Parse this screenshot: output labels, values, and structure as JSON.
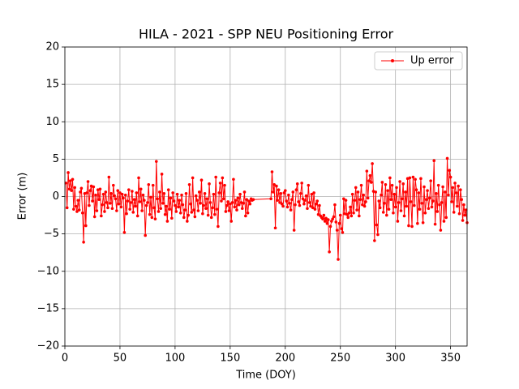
{
  "chart_data": {
    "type": "line",
    "title": "HILA - 2021 - SPP NEU Positioning Error",
    "xlabel": "Time (DOY)",
    "ylabel": "Error (m)",
    "xlim": [
      0,
      365
    ],
    "ylim": [
      -20,
      20
    ],
    "xticks": [
      0,
      50,
      100,
      150,
      200,
      250,
      300,
      350
    ],
    "yticks": [
      {
        "value": -20,
        "label": "−20"
      },
      {
        "value": -15,
        "label": "−15"
      },
      {
        "value": -10,
        "label": "−10"
      },
      {
        "value": -5,
        "label": "−5"
      },
      0,
      5,
      10,
      15,
      20
    ],
    "grid": true,
    "legend": "upper right",
    "x": [
      1,
      2,
      3,
      4,
      5,
      6,
      7,
      8,
      9,
      10,
      11,
      12,
      13,
      14,
      15,
      16,
      17,
      18,
      19,
      20,
      21,
      22,
      23,
      24,
      25,
      26,
      27,
      28,
      29,
      30,
      31,
      32,
      33,
      34,
      35,
      36,
      37,
      38,
      39,
      40,
      41,
      42,
      43,
      44,
      45,
      46,
      47,
      48,
      49,
      50,
      51,
      52,
      53,
      54,
      55,
      56,
      57,
      58,
      59,
      60,
      61,
      62,
      63,
      64,
      65,
      66,
      67,
      68,
      69,
      70,
      71,
      72,
      73,
      74,
      75,
      76,
      77,
      78,
      79,
      80,
      81,
      82,
      83,
      84,
      85,
      86,
      87,
      88,
      89,
      90,
      91,
      92,
      93,
      94,
      95,
      96,
      97,
      98,
      99,
      100,
      101,
      102,
      103,
      104,
      105,
      106,
      107,
      108,
      109,
      110,
      111,
      112,
      113,
      114,
      115,
      116,
      117,
      118,
      119,
      120,
      121,
      122,
      123,
      124,
      125,
      126,
      127,
      128,
      129,
      130,
      131,
      132,
      133,
      134,
      135,
      136,
      137,
      138,
      139,
      140,
      141,
      142,
      143,
      144,
      145,
      146,
      147,
      148,
      149,
      150,
      151,
      152,
      153,
      154,
      155,
      156,
      157,
      158,
      159,
      160,
      161,
      162,
      163,
      164,
      165,
      166,
      167,
      168,
      169,
      170,
      171,
      187,
      188,
      189,
      190,
      191,
      192,
      193,
      194,
      195,
      196,
      197,
      198,
      199,
      200,
      201,
      202,
      203,
      204,
      205,
      206,
      207,
      208,
      209,
      210,
      211,
      212,
      213,
      214,
      215,
      216,
      217,
      218,
      219,
      220,
      221,
      222,
      223,
      224,
      225,
      226,
      227,
      228,
      229,
      230,
      231,
      232,
      233,
      234,
      235,
      236,
      237,
      238,
      239,
      240,
      241,
      242,
      243,
      244,
      245,
      246,
      247,
      248,
      249,
      250,
      251,
      252,
      253,
      254,
      255,
      256,
      257,
      258,
      259,
      260,
      261,
      262,
      263,
      264,
      265,
      266,
      267,
      268,
      269,
      270,
      271,
      272,
      273,
      274,
      275,
      276,
      277,
      278,
      279,
      280,
      281,
      282,
      283,
      284,
      285,
      286,
      287,
      288,
      289,
      290,
      291,
      292,
      293,
      294,
      295,
      296,
      297,
      298,
      299,
      300,
      301,
      302,
      303,
      304,
      305,
      306,
      307,
      308,
      309,
      310,
      311,
      312,
      313,
      314,
      315,
      316,
      317,
      318,
      319,
      320,
      321,
      322,
      323,
      324,
      325,
      326,
      327,
      328,
      329,
      330,
      331,
      332,
      333,
      334,
      335,
      336,
      337,
      338,
      339,
      340,
      341,
      342,
      343,
      344,
      345,
      346,
      347,
      348,
      349,
      350,
      351,
      352,
      353,
      354,
      355,
      356,
      357,
      358,
      359,
      360,
      361,
      362,
      363,
      364,
      365
    ],
    "series": [
      {
        "name": "Up error",
        "color": "#ff0000",
        "values": [
          1.8,
          -1.5,
          3.2,
          1.0,
          2.1,
          0.8,
          2.3,
          -1.7,
          1.2,
          -1.3,
          -2.0,
          -0.5,
          -1.8,
          0.6,
          1.1,
          -2.2,
          -6.1,
          0.4,
          -3.9,
          0.5,
          2.0,
          -1.2,
          0.8,
          1.4,
          -0.6,
          1.3,
          -2.7,
          0.2,
          -1.9,
          0.9,
          -0.4,
          1.0,
          -2.6,
          -1.1,
          0.3,
          -2.0,
          0.6,
          -0.8,
          -1.5,
          2.6,
          -0.9,
          0.4,
          -1.6,
          1.5,
          0.1,
          -0.3,
          -1.9,
          0.8,
          -1.0,
          0.5,
          -1.4,
          0.3,
          -0.2,
          -4.8,
          0.2,
          -2.3,
          -0.6,
          0.9,
          -1.7,
          -0.8,
          0.7,
          -2.1,
          -0.4,
          -1.3,
          0.5,
          -2.6,
          2.5,
          -0.7,
          1.0,
          -1.9,
          0.2,
          -0.5,
          -5.2,
          -1.2,
          -0.8,
          1.6,
          -2.4,
          -0.1,
          -2.8,
          1.5,
          -1.5,
          -3.0,
          4.7,
          -0.3,
          -2.0,
          0.6,
          -1.6,
          3.0,
          -0.9,
          0.4,
          -2.4,
          -1.3,
          -3.3,
          0.9,
          -1.7,
          -0.2,
          -2.9,
          0.5,
          -0.6,
          -1.2,
          -2.0,
          0.3,
          -1.4,
          -0.5,
          -2.2,
          0.2,
          -1.1,
          -2.8,
          -1.8,
          0.4,
          -3.3,
          -2.5,
          1.6,
          -1.0,
          -2.1,
          2.5,
          -1.8,
          -2.7,
          0.1,
          -0.5,
          -1.9,
          0.6,
          -0.9,
          2.2,
          -2.3,
          -1.2,
          0.4,
          -1.6,
          -0.3,
          -2.5,
          1.7,
          -0.8,
          -2.8,
          -1.5,
          0.3,
          -2.4,
          2.6,
          -1.7,
          -4.0,
          0.5,
          1.8,
          -0.6,
          2.5,
          -0.3,
          1.5,
          -2.0,
          -1.2,
          -0.7,
          -1.9,
          -1.0,
          -3.3,
          -0.8,
          2.3,
          -1.4,
          -0.5,
          -1.8,
          -0.2,
          -1.1,
          0.3,
          -0.8,
          -1.6,
          -0.9,
          0.6,
          -2.6,
          -0.4,
          -2.2,
          -0.6,
          -1.0,
          -0.3,
          -0.5,
          -0.4,
          -0.3,
          3.3,
          0.6,
          1.6,
          -4.2,
          1.4,
          -0.5,
          0.9,
          -0.8,
          0.4,
          -1.0,
          -1.3,
          0.5,
          0.8,
          -0.6,
          -1.4,
          0.2,
          -0.9,
          -1.8,
          -0.4,
          0.6,
          -4.5,
          -1.1,
          0.9,
          1.7,
          -0.7,
          -1.2,
          0.4,
          1.8,
          -0.3,
          -1.0,
          -0.5,
          0.1,
          -1.6,
          1.5,
          -0.8,
          -1.3,
          0.3,
          -1.5,
          0.5,
          -1.7,
          -1.0,
          -0.6,
          -2.4,
          -1.2,
          -2.6,
          -2.8,
          -3.0,
          -2.5,
          -3.3,
          -2.9,
          -3.6,
          -3.1,
          -7.4,
          -4.0,
          -3.3,
          -3.0,
          -2.7,
          -1.1,
          -3.4,
          -4.5,
          -8.4,
          -3.6,
          -2.5,
          -4.3,
          -4.8,
          -0.3,
          -2.3,
          -0.5,
          -2.4,
          -2.8,
          -2.2,
          -1.4,
          -2.6,
          0.3,
          -2.2,
          -0.5,
          1.2,
          -1.8,
          0.6,
          -2.6,
          -0.4,
          1.5,
          -1.1,
          0.2,
          -1.3,
          -0.7,
          3.4,
          -0.2,
          2.1,
          2.8,
          1.9,
          4.4,
          0.7,
          -5.9,
          0.6,
          -3.8,
          -5.1,
          -0.6,
          -1.5,
          0.2,
          1.9,
          -2.1,
          -0.9,
          1.6,
          -2.5,
          0.8,
          -1.7,
          2.5,
          -0.4,
          1.5,
          -2.2,
          0.3,
          -1.4,
          1.2,
          -3.3,
          -0.8,
          2.0,
          -1.9,
          -0.3,
          1.7,
          -2.6,
          0.6,
          -1.3,
          2.4,
          -3.9,
          2.5,
          -0.7,
          -4.0,
          2.6,
          -1.2,
          2.3,
          0.9,
          -3.6,
          0.5,
          -1.7,
          2.4,
          -0.9,
          -3.5,
          1.3,
          -2.2,
          -0.4,
          0.8,
          -1.6,
          -0.2,
          2.1,
          -1.4,
          -0.6,
          4.8,
          -3.7,
          0.4,
          -2.0,
          1.5,
          -1.1,
          -4.5,
          -0.8,
          1.3,
          -3.3,
          0.6,
          -2.8,
          5.1,
          0.2,
          3.5,
          2.6,
          -0.7,
          1.2,
          -2.1,
          1.8,
          0.5,
          -1.3,
          1.4,
          -2.3,
          0.9,
          -0.4,
          -3.2,
          -1.1,
          -2.5,
          -1.8,
          -3.5
        ]
      }
    ]
  }
}
